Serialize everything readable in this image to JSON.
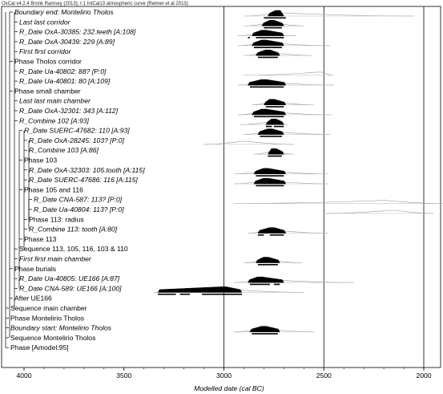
{
  "header": "OxCal v4.2.4 Bronk Ramsey (2013); r:1 IntCal13 atmospheric curve (Reimer et al 2013)",
  "chart_data": {
    "type": "bar",
    "xlabel": "Modelled date (cal BC)",
    "xlim": [
      4100,
      1900
    ],
    "x_reversed": true,
    "ticks": [
      4000,
      3500,
      3000,
      2500,
      2000
    ],
    "gridlines": [
      3000,
      2500,
      2000
    ],
    "rows": [
      {
        "label": "Boundary end: Montelirio Tholos",
        "italic": true,
        "level": 1,
        "prior": [
          2900,
          2050
        ],
        "post": [
          2780,
          2700
        ],
        "peak": 2730,
        "hpd": [
          [
            2800,
            2690
          ]
        ]
      },
      {
        "label": "Last last corridor",
        "italic": true,
        "level": 2,
        "prior": [
          2900,
          2600
        ],
        "post": [
          2810,
          2700
        ],
        "peak": 2760,
        "hpd": [
          [
            2800,
            2710
          ]
        ]
      },
      {
        "label": "R_Date OxA-30385: 232.teeth [A:108]",
        "italic": true,
        "level": 2,
        "prior": [
          2930,
          2640
        ],
        "post": [
          2860,
          2700
        ],
        "peak": 2800,
        "hpd": [
          [
            2880,
            2870
          ],
          [
            2840,
            2700
          ]
        ]
      },
      {
        "label": "R_Date OxA-30439: 229 [A:89]",
        "italic": true,
        "level": 2,
        "prior": [
          2930,
          2470
        ],
        "post": [
          2860,
          2700
        ],
        "peak": 2800,
        "hpd": [
          [
            2850,
            2710
          ]
        ]
      },
      {
        "label": "First first corridor",
        "italic": true,
        "level": 2,
        "prior": [
          2900,
          2560
        ],
        "post": [
          2840,
          2720
        ],
        "peak": 2780,
        "hpd": [
          [
            2830,
            2730
          ]
        ]
      },
      {
        "label": "Phase Tholos corridor",
        "italic": false,
        "level": 1
      },
      {
        "label": "R_Date Ua-40802: 88? [P:0]",
        "italic": true,
        "level": 2,
        "prior": [
          2900,
          2450
        ],
        "peak": 2520
      },
      {
        "label": "R_Date Ua-40801: 80 [A:109]",
        "italic": true,
        "level": 2,
        "prior": [
          2930,
          2450
        ],
        "post": [
          2880,
          2690
        ],
        "peak": 2800,
        "hpd": [
          [
            2870,
            2700
          ]
        ]
      },
      {
        "label": "Phase small chamber",
        "italic": false,
        "level": 1
      },
      {
        "label": "Last last main chamber",
        "italic": true,
        "level": 2,
        "prior": [
          2860,
          2550
        ],
        "post": [
          2800,
          2690
        ],
        "peak": 2760,
        "hpd": [
          [
            2790,
            2700
          ]
        ]
      },
      {
        "label": "R_Date OxA-32301: 343 [A:112]",
        "italic": true,
        "level": 2,
        "prior": [
          2930,
          2460
        ],
        "post": [
          2860,
          2690
        ],
        "peak": 2800,
        "hpd": [
          [
            2850,
            2700
          ]
        ]
      },
      {
        "label": "R_Combine 102 [A:93]",
        "italic": true,
        "level": 2,
        "prior": [
          2920,
          2680
        ],
        "post": [
          2790,
          2700
        ],
        "peak": 2750,
        "hpd": [
          [
            2790,
            2760
          ],
          [
            2750,
            2700
          ]
        ]
      },
      {
        "label": "R_Date SUERC-47682: 110 [A:93]",
        "italic": true,
        "level": 3,
        "prior": [
          2900,
          2470
        ],
        "post": [
          2830,
          2700
        ],
        "peak": 2770,
        "hpd": [
          [
            2820,
            2710
          ]
        ]
      },
      {
        "label": "R_Date OxA-28245: 103? [P:0]",
        "italic": true,
        "level": 4,
        "prior": [
          3100,
          2650
        ],
        "peak": 2900
      },
      {
        "label": "R_Combine 103 [A:86]",
        "italic": true,
        "level": 4,
        "prior": [
          2850,
          2650
        ],
        "post": [
          2780,
          2700
        ],
        "peak": 2750,
        "hpd": [
          [
            2780,
            2710
          ]
        ]
      },
      {
        "label": "Phase 103",
        "italic": false,
        "level": 3
      },
      {
        "label": "R_Date OxA-32303: 105.tooth [A:115]",
        "italic": true,
        "level": 4,
        "prior": [
          2950,
          2480
        ],
        "post": [
          2850,
          2690
        ],
        "peak": 2790,
        "hpd": [
          [
            2840,
            2700
          ]
        ]
      },
      {
        "label": "R_Date SUERC-47686: 116 [A:115]",
        "italic": true,
        "level": 4,
        "prior": [
          2950,
          2480
        ],
        "post": [
          2850,
          2690
        ],
        "peak": 2790,
        "hpd": [
          [
            2840,
            2700
          ]
        ]
      },
      {
        "label": "Phase 105 and 116",
        "italic": false,
        "level": 3
      },
      {
        "label": "R_Date CNA-587: 113? [P:0]",
        "italic": true,
        "level": 5,
        "prior": [
          2950,
          1900
        ],
        "peak": 2200
      },
      {
        "label": "R_Date Ua-40804: 113? [P:0]",
        "italic": true,
        "level": 5,
        "prior": [
          2500,
          1950
        ],
        "peak": 2150
      },
      {
        "label": "Phase 113: radius",
        "italic": false,
        "level": 4
      },
      {
        "label": "R_Combine 113: tooth [A:80]",
        "italic": true,
        "level": 4,
        "prior": [
          2880,
          2480
        ],
        "post": [
          2830,
          2690
        ],
        "peak": 2760,
        "hpd": [
          [
            2830,
            2800
          ],
          [
            2770,
            2700
          ]
        ]
      },
      {
        "label": "Phase 113",
        "italic": false,
        "level": 3
      },
      {
        "label": "Sequence 113, 105, 116, 103 & 110",
        "italic": false,
        "level": 2
      },
      {
        "label": "First first main chamber",
        "italic": true,
        "level": 2,
        "prior": [
          2900,
          2610
        ],
        "post": [
          2840,
          2720
        ],
        "peak": 2790,
        "hpd": [
          [
            2830,
            2730
          ]
        ]
      },
      {
        "label": "Phase burials",
        "italic": false,
        "level": 1
      },
      {
        "label": "R_Date Ua-40805: UE166 [A:87]",
        "italic": true,
        "level": 2,
        "prior": [
          2950,
          2350
        ],
        "post": [
          2880,
          2700
        ],
        "peak": 2820,
        "hpd": [
          [
            2870,
            2770
          ],
          [
            2750,
            2720
          ]
        ]
      },
      {
        "label": "R_Date CNA-589: UE166 [A:100]",
        "italic": true,
        "level": 2,
        "prior": [
          3350,
          2600
        ],
        "post": [
          3330,
          2910
        ],
        "peak": 3000,
        "hpd": [
          [
            3330,
            3240
          ],
          [
            3220,
            3170
          ],
          [
            3110,
            2910
          ]
        ]
      },
      {
        "label": "After UE166",
        "italic": false,
        "level": 1
      },
      {
        "label": "Sequence main chamber",
        "italic": false,
        "level": 0
      },
      {
        "label": "Phase Montelirio Tholos",
        "italic": false,
        "level": 0
      },
      {
        "label": "Boundary start: Montelirio Tholos",
        "italic": true,
        "level": 0,
        "prior": [
          2950,
          2550
        ],
        "post": [
          2870,
          2720
        ],
        "peak": 2800,
        "hpd": [
          [
            2860,
            2730
          ]
        ]
      },
      {
        "label": "Sequence Montelirio Tholos",
        "italic": false,
        "level": 0
      },
      {
        "label": "Phase [Amodel:95]",
        "italic": false,
        "level": 0
      }
    ]
  }
}
